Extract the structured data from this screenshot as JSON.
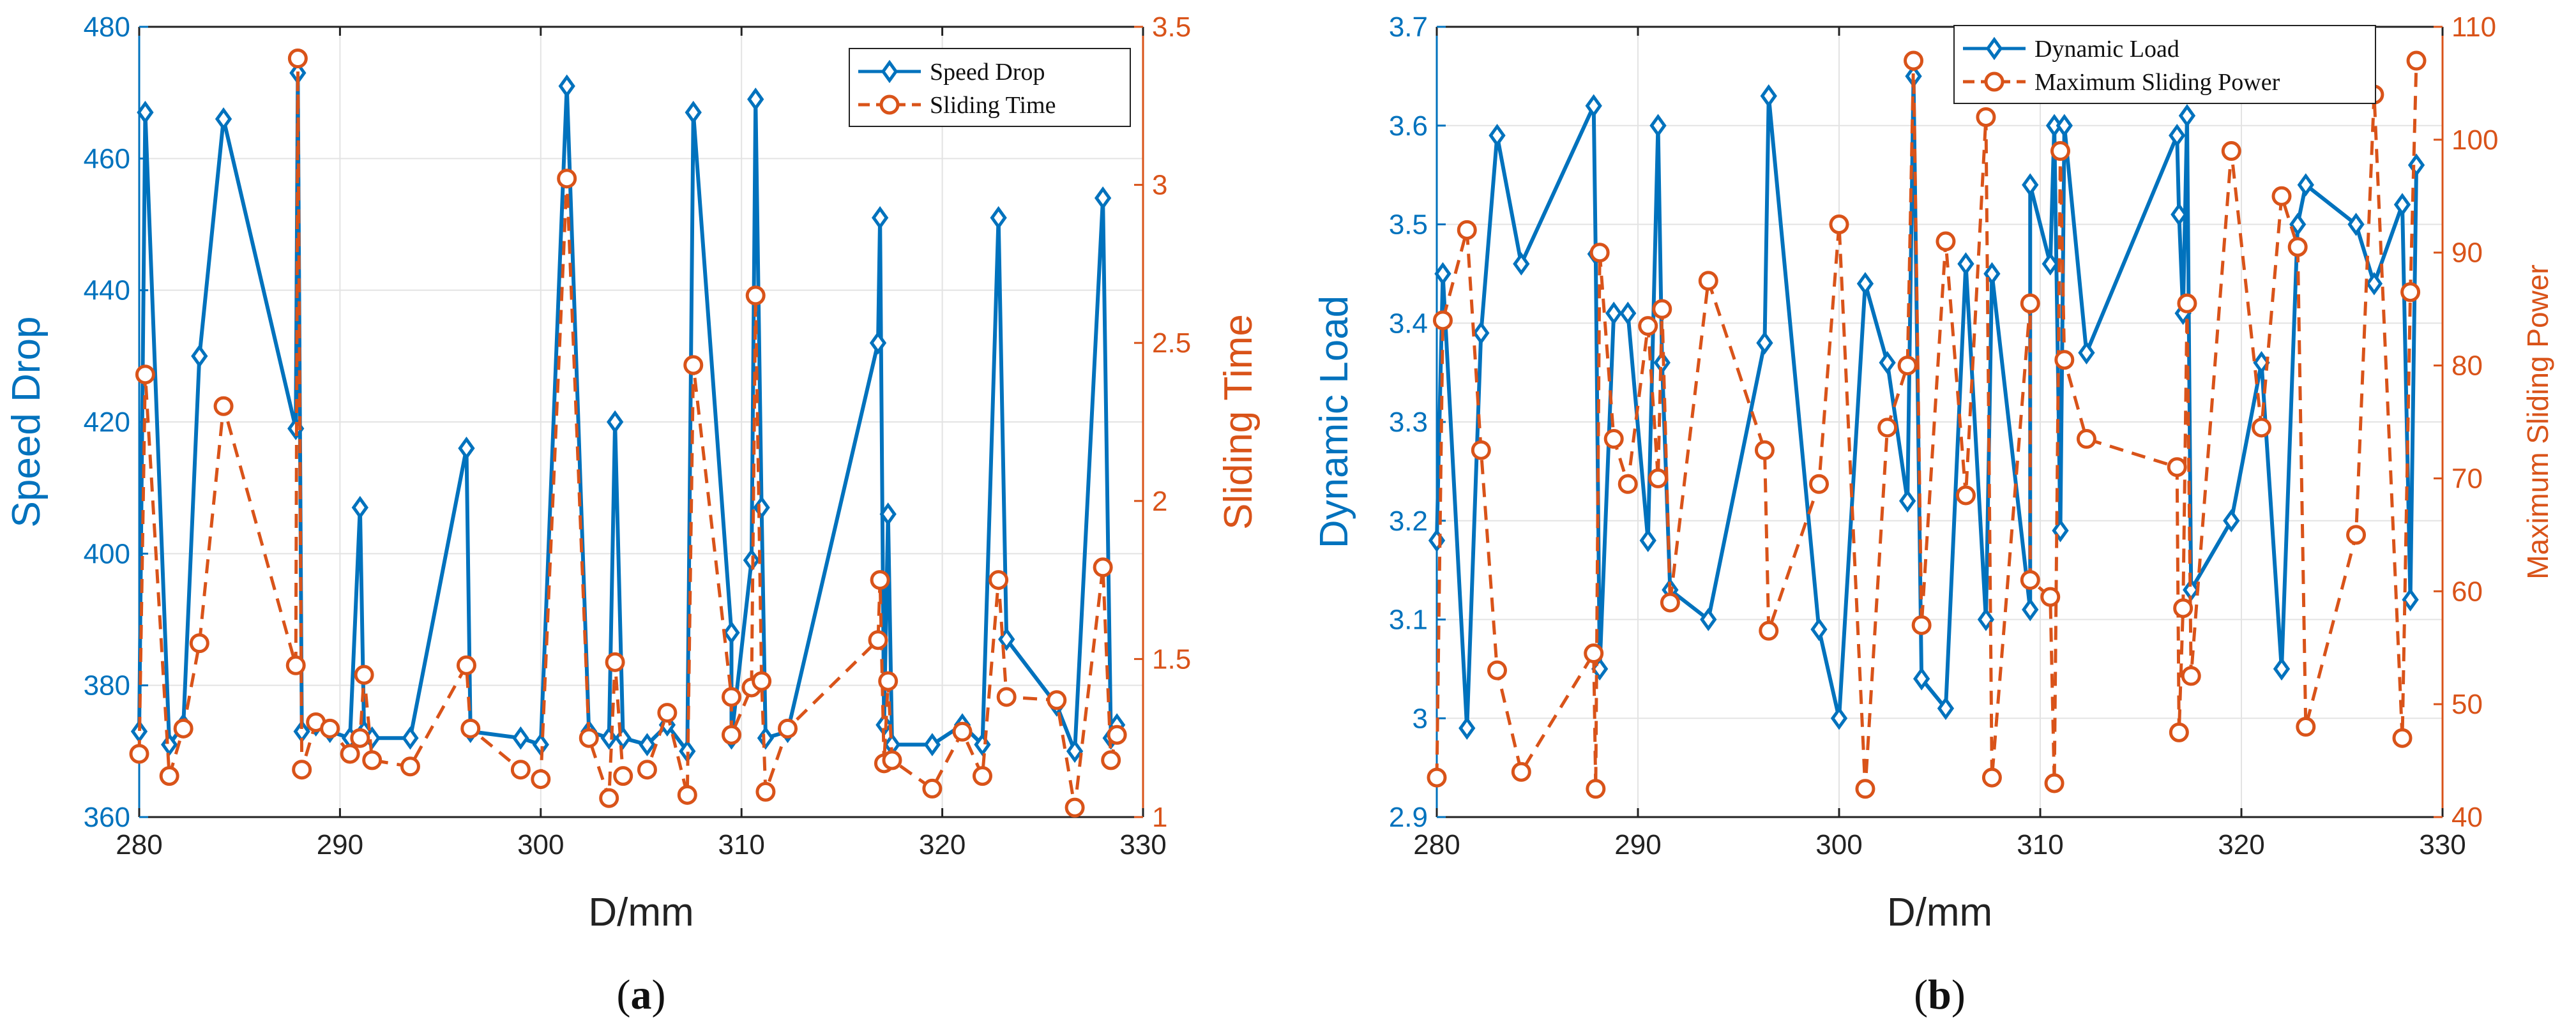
{
  "chart_data": [
    {
      "type": "line",
      "panel": "a",
      "caption_open": "(",
      "caption_letter": "a",
      "caption_close": ")",
      "xlabel": "D/mm",
      "ylabel": "Speed Drop",
      "y2label": "Sliding Time",
      "xlim": [
        280,
        330
      ],
      "ylim": [
        360,
        480
      ],
      "y2lim": [
        1,
        3.5
      ],
      "xticks": [
        280,
        290,
        300,
        310,
        320,
        330
      ],
      "yticks": [
        360,
        380,
        400,
        420,
        440,
        460,
        480
      ],
      "y2ticks": [
        1,
        1.5,
        2,
        2.5,
        3,
        3.5
      ],
      "grid": true,
      "legend_position": "top-right",
      "series": [
        {
          "name": "Speed Drop",
          "axis": "left",
          "color": "#0072BD",
          "marker": "diamond",
          "linestyle": "solid",
          "x": [
            280,
            280.3,
            281.5,
            282.2,
            283,
            284.2,
            287.8,
            287.9,
            288.1,
            288.8,
            289.5,
            290.5,
            291,
            291.2,
            291.6,
            293.5,
            296.3,
            296.5,
            299,
            300,
            301.3,
            302.4,
            303.4,
            303.7,
            304.1,
            305.3,
            306.3,
            307.3,
            307.6,
            309.5,
            309.5,
            310.5,
            310.7,
            311,
            311.2,
            312.3,
            316.8,
            316.9,
            317.1,
            317.3,
            317.5,
            319.5,
            321,
            322,
            322.8,
            323.2,
            325.7,
            326.6,
            328,
            328.4,
            328.7
          ],
          "y": [
            373,
            467,
            371,
            374,
            430,
            466,
            419,
            473,
            373,
            374,
            373,
            372,
            407,
            373,
            372,
            372,
            416,
            373,
            372,
            371,
            471,
            373,
            372,
            420,
            372,
            371,
            374,
            370,
            467,
            388,
            372,
            399,
            469,
            407,
            372,
            373,
            432,
            451,
            374,
            406,
            371,
            371,
            374,
            371,
            451,
            387,
            377,
            370,
            454,
            372,
            374
          ]
        },
        {
          "name": "Sliding Time",
          "axis": "right",
          "color": "#D95319",
          "marker": "circle",
          "linestyle": "dashed",
          "x": [
            280,
            280.3,
            281.5,
            282.2,
            283,
            284.2,
            287.8,
            287.9,
            288.1,
            288.8,
            289.5,
            290.5,
            291,
            291.2,
            291.6,
            293.5,
            296.3,
            296.5,
            299,
            300,
            301.3,
            302.4,
            303.4,
            303.7,
            304.1,
            305.3,
            306.3,
            307.3,
            307.6,
            309.5,
            309.5,
            310.5,
            310.7,
            311,
            311.2,
            312.3,
            316.8,
            316.9,
            317.1,
            317.3,
            317.5,
            319.5,
            321,
            322,
            322.8,
            323.2,
            325.7,
            326.6,
            328,
            328.4,
            328.7
          ],
          "y": [
            1.2,
            2.4,
            1.13,
            1.28,
            1.55,
            2.3,
            1.48,
            3.4,
            1.15,
            1.3,
            1.28,
            1.2,
            1.25,
            1.45,
            1.18,
            1.16,
            1.48,
            1.28,
            1.15,
            1.12,
            3.02,
            1.25,
            1.06,
            1.49,
            1.13,
            1.15,
            1.33,
            1.07,
            2.43,
            1.38,
            1.26,
            1.41,
            2.65,
            1.43,
            1.08,
            1.28,
            1.56,
            1.75,
            1.17,
            1.43,
            1.18,
            1.09,
            1.27,
            1.13,
            1.75,
            1.38,
            1.37,
            1.03,
            1.79,
            1.18,
            1.26
          ]
        }
      ]
    },
    {
      "type": "line",
      "panel": "b",
      "caption_open": "(",
      "caption_letter": "b",
      "caption_close": ")",
      "xlabel": "D/mm",
      "ylabel": "Dynamic Load",
      "y2label": "Maximum Sliding Power",
      "xlim": [
        280,
        330
      ],
      "ylim": [
        2.9,
        3.7
      ],
      "y2lim": [
        40,
        110
      ],
      "xticks": [
        280,
        290,
        300,
        310,
        320,
        330
      ],
      "yticks": [
        2.9,
        3,
        3.1,
        3.2,
        3.3,
        3.4,
        3.5,
        3.6,
        3.7
      ],
      "y2ticks": [
        40,
        50,
        60,
        70,
        80,
        90,
        100,
        110
      ],
      "grid": true,
      "legend_position": "top-right",
      "series": [
        {
          "name": "Dynamic Load",
          "axis": "left",
          "color": "#0072BD",
          "marker": "diamond",
          "linestyle": "solid",
          "x": [
            280,
            280.3,
            281.5,
            282.2,
            283,
            284.2,
            287.8,
            287.9,
            288.1,
            288.8,
            289.5,
            290.5,
            291,
            291.2,
            291.6,
            293.5,
            296.3,
            296.5,
            299,
            300,
            301.3,
            302.4,
            303.4,
            303.7,
            304.1,
            305.3,
            306.3,
            307.3,
            307.6,
            309.5,
            309.5,
            310.5,
            310.7,
            311,
            311.2,
            312.3,
            316.8,
            316.9,
            317.1,
            317.3,
            317.5,
            319.5,
            321,
            322,
            322.8,
            323.2,
            325.7,
            326.6,
            328,
            328.4,
            328.7
          ],
          "y": [
            3.18,
            3.45,
            2.99,
            3.39,
            3.59,
            3.46,
            3.62,
            3.47,
            3.05,
            3.41,
            3.41,
            3.18,
            3.6,
            3.36,
            3.13,
            3.1,
            3.38,
            3.63,
            3.09,
            3,
            3.44,
            3.36,
            3.22,
            3.65,
            3.04,
            3.01,
            3.46,
            3.1,
            3.45,
            3.11,
            3.54,
            3.46,
            3.6,
            3.19,
            3.6,
            3.37,
            3.59,
            3.51,
            3.41,
            3.61,
            3.13,
            3.2,
            3.36,
            3.05,
            3.5,
            3.54,
            3.5,
            3.44,
            3.52,
            3.12,
            3.56
          ]
        },
        {
          "name": "Maximum Sliding Power",
          "axis": "right",
          "color": "#D95319",
          "marker": "circle",
          "linestyle": "dashed",
          "x": [
            280,
            280.3,
            281.5,
            282.2,
            283,
            284.2,
            287.8,
            287.9,
            288.1,
            288.8,
            289.5,
            290.5,
            291,
            291.2,
            291.6,
            293.5,
            296.3,
            296.5,
            299,
            300,
            301.3,
            302.4,
            303.4,
            303.7,
            304.1,
            305.3,
            306.3,
            307.3,
            307.6,
            309.5,
            309.5,
            310.5,
            310.7,
            311,
            311.2,
            312.3,
            316.8,
            316.9,
            317.1,
            317.3,
            317.5,
            319.5,
            321,
            322,
            322.8,
            323.2,
            325.7,
            326.6,
            328,
            328.4,
            328.7
          ],
          "y": [
            43.5,
            84,
            92,
            72.5,
            53,
            44,
            54.5,
            42.5,
            90,
            73.5,
            69.5,
            83.5,
            70,
            85,
            59,
            87.5,
            72.5,
            56.5,
            69.5,
            92.5,
            42.5,
            74.5,
            80,
            107,
            57,
            91,
            68.5,
            102,
            43.5,
            85.5,
            61,
            59.5,
            43,
            99,
            80.5,
            73.5,
            71,
            47.5,
            58.5,
            85.5,
            52.5,
            99,
            74.5,
            95,
            90.5,
            48,
            65,
            104,
            47,
            86.5,
            107
          ]
        }
      ]
    }
  ]
}
